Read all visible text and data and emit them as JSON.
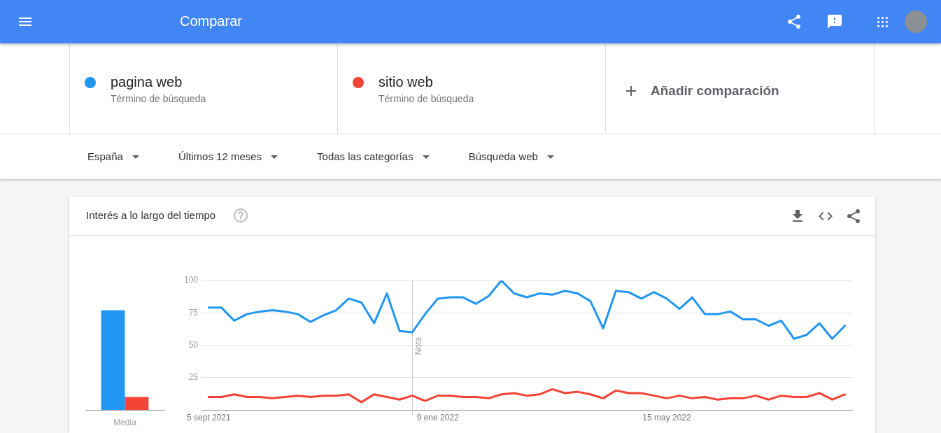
{
  "chart_data": [
    {
      "type": "other",
      "title": "Comparar",
      "annotations": [
        "Añadir comparación",
        "España",
        "Últimos 12 meses",
        "Todas las categorías",
        "Búsqueda web"
      ]
    },
    {
      "type": "bar",
      "title": "Interés a lo largo del tiempo",
      "categories": [
        "Media"
      ],
      "series": [
        {
          "color": "#2196f3",
          "values": [
            77
          ]
        },
        {
          "color": "#f44336",
          "values": [
            10
          ]
        }
      ],
      "ylim": [
        0,
        100
      ],
      "tick_labels": "x"
    },
    {
      "type": "line",
      "x": [
        "2021-09-05",
        "2021-09-12",
        "2021-09-19",
        "2021-09-26",
        "2021-10-03",
        "2021-10-10",
        "2021-10-17",
        "2021-10-24",
        "2021-10-31",
        "2021-11-07",
        "2021-11-14",
        "2021-11-21",
        "2021-11-28",
        "2021-12-05",
        "2021-12-12",
        "2021-12-19",
        "2021-12-26",
        "2022-01-02",
        "2022-01-09",
        "2022-01-16",
        "2022-01-23",
        "2022-01-30",
        "2022-02-06",
        "2022-02-13",
        "2022-02-20",
        "2022-02-27",
        "2022-03-06",
        "2022-03-13",
        "2022-03-20",
        "2022-03-27",
        "2022-04-03",
        "2022-04-10",
        "2022-04-17",
        "2022-04-24",
        "2022-05-01",
        "2022-05-08",
        "2022-05-15",
        "2022-05-22",
        "2022-05-29",
        "2022-06-05",
        "2022-06-12",
        "2022-06-19",
        "2022-06-26",
        "2022-07-03",
        "2022-07-10",
        "2022-07-17",
        "2022-07-24",
        "2022-07-31",
        "2022-08-07",
        "2022-08-14",
        "2022-08-21"
      ],
      "series": [
        {
          "name": "pagina web",
          "color": "#2196f3",
          "values": [
            79,
            79,
            69,
            74,
            76,
            77,
            76,
            74,
            68,
            73,
            77,
            86,
            83,
            67,
            90,
            61,
            60,
            74,
            86,
            87,
            87,
            82,
            88,
            100,
            90,
            87,
            90,
            89,
            92,
            90,
            84,
            63,
            92,
            91,
            86,
            91,
            86,
            78,
            87,
            74,
            74,
            76,
            70,
            70,
            65,
            69,
            55,
            58,
            67,
            55,
            65
          ]
        },
        {
          "name": "sitio web",
          "color": "#f44336",
          "values": [
            10,
            10,
            12,
            10,
            10,
            9,
            10,
            11,
            10,
            11,
            11,
            12,
            6,
            12,
            10,
            8,
            11,
            7,
            11,
            11,
            10,
            10,
            9,
            12,
            13,
            11,
            12,
            16,
            13,
            14,
            12,
            9,
            15,
            13,
            13,
            11,
            9,
            11,
            9,
            10,
            8,
            9,
            9,
            11,
            8,
            11,
            10,
            10,
            13,
            8,
            12
          ]
        }
      ],
      "xlim": [
        "2021-09-01",
        "2022-08-25"
      ],
      "xticks": [
        {
          "value": "2021-09-05",
          "label": "5 sept 2021"
        },
        {
          "value": "2022-01-09",
          "label": "9 ene 2022"
        },
        {
          "value": "2022-05-15",
          "label": "15 may 2022"
        }
      ],
      "ylim": [
        0,
        100
      ],
      "yticks": [
        25,
        50,
        75,
        100
      ],
      "grid": "y",
      "legend": "top",
      "ref_lines": [
        {
          "axis": "x",
          "value": "2021-12-26",
          "label": "Nota",
          "color": "#cccccc"
        }
      ],
      "annotations": [
        "Término de búsqueda",
        "Término de búsqueda"
      ]
    }
  ]
}
